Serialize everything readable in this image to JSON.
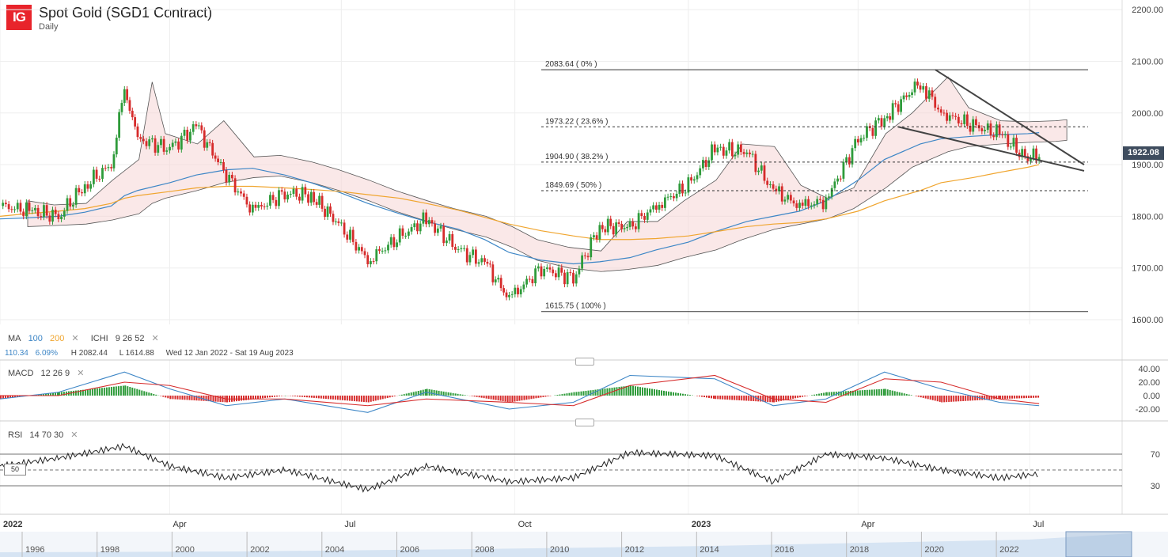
{
  "header": {
    "logo_text": "IG",
    "title": "Spot Gold (SGD1 Contract)",
    "subtitle": "Daily"
  },
  "colors": {
    "up": "#2e9b3a",
    "down": "#d62b2b",
    "ma100": "#3d86c6",
    "ma200": "#f0a52e",
    "cloud_bear": "#f6d5d5",
    "cloud_bull": "#d8f0dc",
    "price_tag_bg": "#3e4c5e",
    "macd_line": "#3d86c6",
    "signal_line": "#d62b2b",
    "rsi_line": "#222222",
    "brand": "#e8242b"
  },
  "overlay_legend": {
    "ma_label": "MA",
    "ma_100": "100",
    "ma_200": "200",
    "ma_close": "✕",
    "ichi_label": "ICHI",
    "ichi_params": "9  26  52",
    "ichi_close": "✕"
  },
  "stats_row": {
    "change": "110.34",
    "change_pct": "6.09%",
    "high": "H 2082.44",
    "low": "L 1614.88",
    "range": "Wed 12 Jan 2022 - Sat 19 Aug 2023"
  },
  "macd_legend": {
    "label": "MACD",
    "params": "12  26  9",
    "close": "✕"
  },
  "rsi_legend": {
    "label": "RSI",
    "params": "14  70  30",
    "close": "✕",
    "mid_label": "50"
  },
  "time_axis_labels": [
    "2022",
    "Apr",
    "Jul",
    "Oct",
    "2023",
    "Apr",
    "Jul"
  ],
  "navigator_labels": [
    "1996",
    "1998",
    "2000",
    "2002",
    "2004",
    "2006",
    "2008",
    "2010",
    "2012",
    "2014",
    "2016",
    "2018",
    "2020",
    "2022"
  ],
  "price_tag": "1922.08",
  "chart_data": [
    {
      "type": "line",
      "title": "Spot Gold (SGD1 Contract)",
      "ylim": [
        1600,
        2200
      ],
      "y_ticks": [
        "2200.00",
        "2100.00",
        "2000.00",
        "1900.00",
        "1800.00",
        "1700.00",
        "1600.00"
      ],
      "y_tick_values": [
        2200,
        2100,
        2000,
        1900,
        1800,
        1700,
        1600
      ],
      "x": [
        "2022-01-01",
        "2022-01-15",
        "2022-02-01",
        "2022-02-15",
        "2022-03-01",
        "2022-03-08",
        "2022-03-15",
        "2022-04-01",
        "2022-04-15",
        "2022-05-01",
        "2022-05-15",
        "2022-06-01",
        "2022-06-15",
        "2022-07-01",
        "2022-07-15",
        "2022-08-01",
        "2022-08-15",
        "2022-09-01",
        "2022-09-15",
        "2022-09-28",
        "2022-10-15",
        "2022-11-01",
        "2022-11-15",
        "2022-12-01",
        "2022-12-15",
        "2023-01-01",
        "2023-01-15",
        "2023-02-01",
        "2023-02-15",
        "2023-03-01",
        "2023-03-15",
        "2023-04-01",
        "2023-04-15",
        "2023-05-04",
        "2023-05-15",
        "2023-06-01",
        "2023-06-15",
        "2023-06-30",
        "2023-07-06"
      ],
      "series": [
        {
          "name": "Close",
          "values": [
            1820,
            1812,
            1800,
            1860,
            1900,
            2050,
            1950,
            1930,
            1975,
            1880,
            1810,
            1845,
            1840,
            1780,
            1715,
            1760,
            1795,
            1735,
            1710,
            1640,
            1700,
            1680,
            1780,
            1780,
            1820,
            1860,
            1930,
            1925,
            1850,
            1820,
            1830,
            1950,
            1990,
            2060,
            2000,
            1975,
            1960,
            1910,
            1922
          ]
        },
        {
          "name": "MA 100",
          "values": [
            1795,
            1797,
            1800,
            1808,
            1820,
            1840,
            1850,
            1865,
            1880,
            1890,
            1893,
            1880,
            1865,
            1845,
            1825,
            1805,
            1790,
            1775,
            1755,
            1730,
            1715,
            1708,
            1712,
            1720,
            1735,
            1750,
            1770,
            1790,
            1800,
            1810,
            1830,
            1870,
            1910,
            1940,
            1950,
            1955,
            1958,
            1960,
            1962
          ]
        },
        {
          "name": "MA 200",
          "values": [
            1800,
            1805,
            1810,
            1815,
            1825,
            1835,
            1840,
            1848,
            1855,
            1858,
            1858,
            1855,
            1852,
            1848,
            1842,
            1835,
            1825,
            1812,
            1798,
            1785,
            1772,
            1762,
            1755,
            1755,
            1757,
            1762,
            1770,
            1780,
            1785,
            1788,
            1795,
            1810,
            1830,
            1850,
            1865,
            1875,
            1885,
            1895,
            1900
          ]
        }
      ],
      "fibonacci_levels": [
        {
          "value": 2083.64,
          "label": "2083.64 ( 0% )",
          "style": "solid"
        },
        {
          "value": 1973.22,
          "label": "1973.22 ( 23.6% )",
          "style": "dashed"
        },
        {
          "value": 1904.9,
          "label": "1904.90 ( 38.2% )",
          "style": "dashed"
        },
        {
          "value": 1849.69,
          "label": "1849.69 ( 50% )",
          "style": "dashed"
        },
        {
          "value": 1615.75,
          "label": "1615.75 ( 100% )",
          "style": "solid"
        }
      ],
      "last_price": 1922.08,
      "grid": true
    },
    {
      "type": "line",
      "title": "MACD",
      "ylim": [
        -30,
        45
      ],
      "y_ticks": [
        "40.00",
        "20.00",
        "0.00",
        "-20.00"
      ],
      "y_tick_values": [
        40,
        20,
        0,
        -20
      ],
      "x": [
        "2022-01-01",
        "2022-02-01",
        "2022-03-08",
        "2022-04-01",
        "2022-05-01",
        "2022-06-01",
        "2022-07-15",
        "2022-08-15",
        "2022-09-28",
        "2022-11-01",
        "2022-12-01",
        "2023-01-15",
        "2023-02-15",
        "2023-03-15",
        "2023-04-15",
        "2023-05-15",
        "2023-06-15",
        "2023-07-06"
      ],
      "series": [
        {
          "name": "MACD",
          "values": [
            -5,
            5,
            35,
            10,
            -15,
            -5,
            -25,
            5,
            -20,
            -10,
            30,
            25,
            -15,
            -5,
            35,
            10,
            -10,
            -15
          ]
        },
        {
          "name": "Signal",
          "values": [
            0,
            0,
            20,
            15,
            -5,
            -5,
            -15,
            -5,
            -10,
            -15,
            15,
            30,
            -5,
            -10,
            25,
            20,
            -5,
            -12
          ]
        },
        {
          "name": "Histogram",
          "values": [
            -5,
            5,
            15,
            -5,
            -10,
            0,
            -10,
            10,
            -10,
            5,
            15,
            -5,
            -10,
            5,
            10,
            -10,
            -5,
            -3
          ]
        }
      ]
    },
    {
      "type": "line",
      "title": "RSI",
      "ylim": [
        15,
        85
      ],
      "y_ticks": [
        "70",
        "30"
      ],
      "y_tick_values": [
        70,
        30
      ],
      "x": [
        "2022-01-01",
        "2022-02-01",
        "2022-03-08",
        "2022-04-01",
        "2022-05-01",
        "2022-06-01",
        "2022-07-15",
        "2022-08-15",
        "2022-09-28",
        "2022-11-01",
        "2022-12-01",
        "2023-01-15",
        "2023-02-15",
        "2023-03-15",
        "2023-04-15",
        "2023-05-15",
        "2023-06-15",
        "2023-07-06"
      ],
      "series": [
        {
          "name": "RSI",
          "values": [
            55,
            65,
            80,
            55,
            40,
            50,
            25,
            55,
            35,
            40,
            72,
            68,
            35,
            70,
            65,
            50,
            40,
            45
          ]
        }
      ]
    }
  ]
}
